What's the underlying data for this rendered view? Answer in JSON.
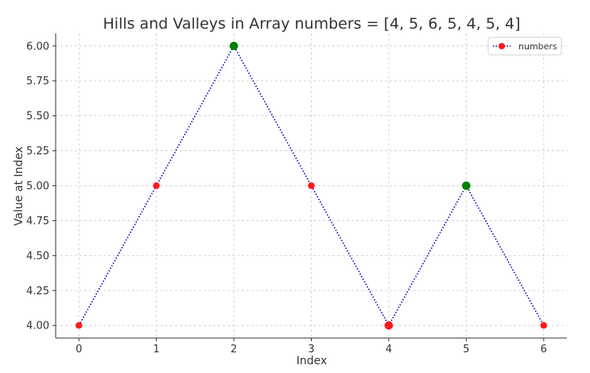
{
  "chart_data": {
    "type": "line",
    "title": "Hills and Valleys in Array numbers = [4, 5, 6, 5, 4, 5, 4]",
    "xlabel": "Index",
    "ylabel": "Value at Index",
    "x": [
      0,
      1,
      2,
      3,
      4,
      5,
      6
    ],
    "xlim": [
      -0.3,
      6.3
    ],
    "ylim": [
      3.91,
      6.09
    ],
    "x_ticks": [
      "0",
      "1",
      "2",
      "3",
      "4",
      "5",
      "6"
    ],
    "y_ticks": [
      "4.00",
      "4.25",
      "4.50",
      "4.75",
      "5.00",
      "5.25",
      "5.50",
      "5.75",
      "6.00"
    ],
    "series": [
      {
        "name": "numbers",
        "values": [
          4,
          5,
          6,
          5,
          4,
          5,
          4
        ],
        "line_style": "dotted",
        "line_color": "#0000b3",
        "marker_color": "#ff1a1a"
      }
    ],
    "hills": [
      {
        "x": 2,
        "y": 6
      },
      {
        "x": 5,
        "y": 5
      }
    ],
    "valleys": [
      {
        "x": 4,
        "y": 4
      }
    ],
    "colors": {
      "hill": "#008000",
      "valley": "#ff1a1a",
      "grid": "#cccccc",
      "axis": "#333333"
    },
    "grid": true,
    "legend": "top-right"
  }
}
